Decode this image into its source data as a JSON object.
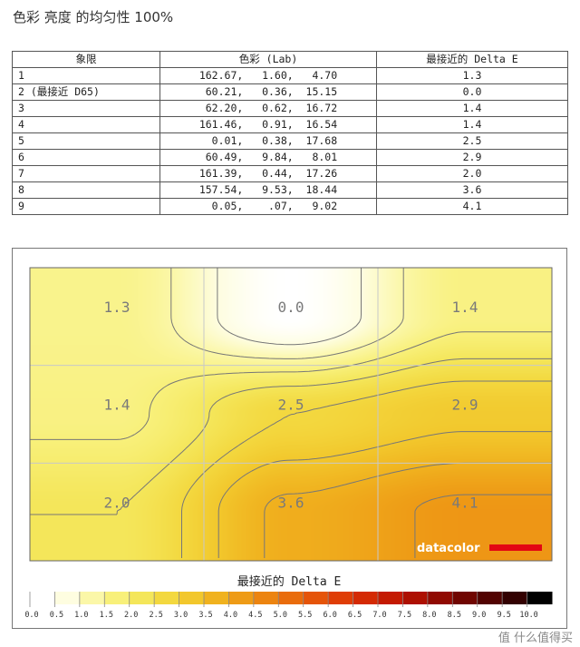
{
  "page_title": "色彩 亮度 的均匀性 100%",
  "table": {
    "headers": [
      "象限",
      "色彩 (Lab)",
      "最接近的 Delta E"
    ],
    "rows": [
      {
        "quadrant": "1",
        "lab": "162.67,   1.60,   4.70",
        "de": "1.3"
      },
      {
        "quadrant": "2 (最接近 D65)",
        "lab": " 60.21,   0.36,  15.15",
        "de": "0.0"
      },
      {
        "quadrant": "3",
        "lab": " 62.20,   0.62,  16.72",
        "de": "1.4"
      },
      {
        "quadrant": "4",
        "lab": "161.46,   0.91,  16.54",
        "de": "1.4"
      },
      {
        "quadrant": "5",
        "lab": "  0.01,   0.38,  17.68",
        "de": "2.5"
      },
      {
        "quadrant": "6",
        "lab": " 60.49,   9.84,   8.01",
        "de": "2.9"
      },
      {
        "quadrant": "7",
        "lab": "161.39,   0.44,  17.26",
        "de": "2.0"
      },
      {
        "quadrant": "8",
        "lab": "157.54,   9.53,  18.44",
        "de": "3.6"
      },
      {
        "quadrant": "9",
        "lab": "  0.05,    .07,   9.02",
        "de": "4.1"
      }
    ]
  },
  "chart_data": {
    "type": "heatmap",
    "grid_rows": 3,
    "grid_cols": 3,
    "values": [
      [
        1.3,
        0.0,
        1.4
      ],
      [
        1.4,
        2.5,
        2.9
      ],
      [
        2.0,
        3.6,
        4.1
      ]
    ],
    "value_labels": [
      [
        "1.3",
        "0.0",
        "1.4"
      ],
      [
        "1.4",
        "2.5",
        "2.9"
      ],
      [
        "2.0",
        "3.6",
        "4.1"
      ]
    ],
    "color_scale": {
      "title": "最接近的 Delta E",
      "min": 0.0,
      "max": 10.0,
      "ticks": [
        "0.0",
        "0.5",
        "1.0",
        "1.5",
        "2.0",
        "2.5",
        "3.0",
        "3.5",
        "4.0",
        "4.5",
        "5.0",
        "5.5",
        "6.0",
        "6.5",
        "7.0",
        "7.5",
        "8.0",
        "8.5",
        "9.0",
        "9.5",
        "10.0"
      ],
      "colors": [
        "#ffffff",
        "#fefde0",
        "#fbf7a8",
        "#f8f07a",
        "#f4e65a",
        "#f3d83f",
        "#f2c72c",
        "#f0b21f",
        "#ee9b16",
        "#ec8410",
        "#e96c0c",
        "#e55409",
        "#df3d06",
        "#d42a04",
        "#c41a02",
        "#ad1001",
        "#900a01",
        "#700601",
        "#520301",
        "#330101",
        "#000000"
      ]
    },
    "grid": true
  },
  "logo": {
    "text": "datacolor",
    "bar_color": "#e30613"
  },
  "watermark": "值 什么值得买"
}
